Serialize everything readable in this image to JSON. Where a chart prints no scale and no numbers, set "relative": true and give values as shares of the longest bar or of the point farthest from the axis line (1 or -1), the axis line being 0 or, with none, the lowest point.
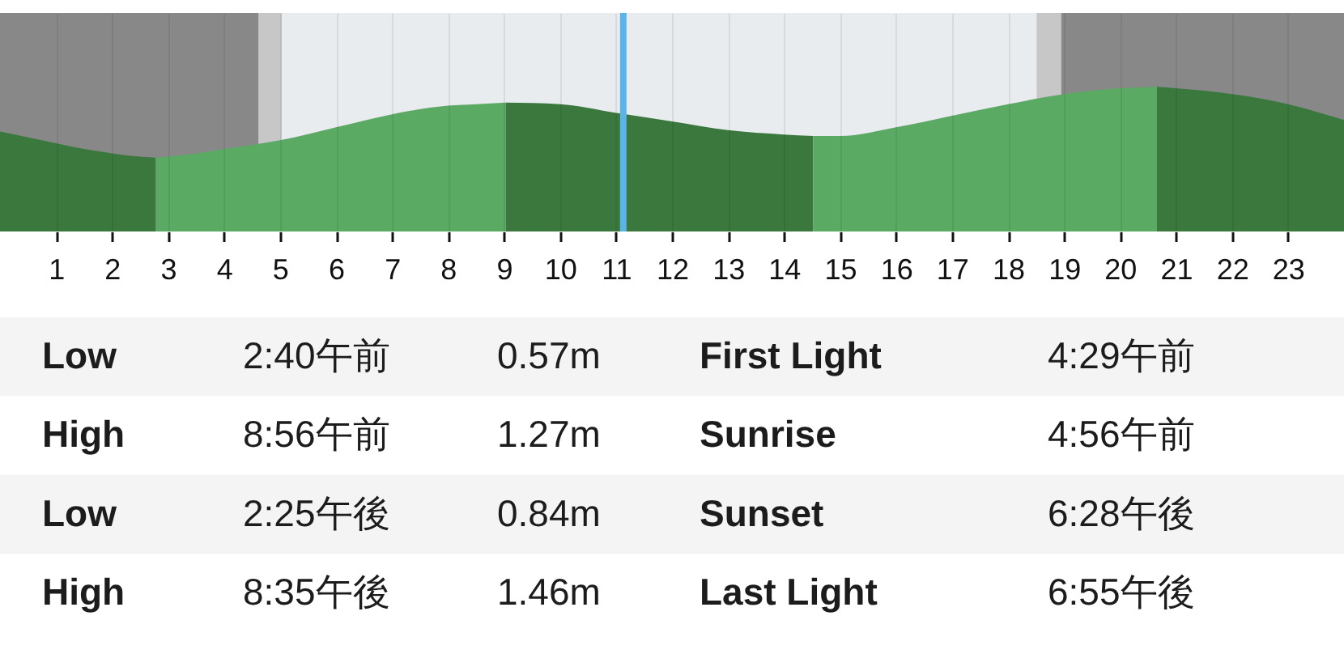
{
  "chart_data": [
    {
      "type": "area",
      "relative": true,
      "xlim": [
        0,
        24
      ],
      "xticks": [
        1,
        2,
        3,
        4,
        5,
        6,
        7,
        8,
        9,
        10,
        11,
        12,
        13,
        14,
        15,
        16,
        17,
        18,
        19,
        20,
        21,
        22,
        23
      ],
      "tick_labels": "x",
      "grid": "x",
      "bands": [
        {
          "axis": "x",
          "from": 0,
          "to": 4.62,
          "color": "#888888"
        },
        {
          "axis": "x",
          "from": 4.62,
          "to": 5.03,
          "color": "#c7c7c7"
        },
        {
          "axis": "x",
          "from": 5.03,
          "to": 18.51,
          "color": "#e9ecee"
        },
        {
          "axis": "x",
          "from": 18.51,
          "to": 18.95,
          "color": "#c7c7c7"
        },
        {
          "axis": "x",
          "from": 18.95,
          "to": 24,
          "color": "#888888"
        }
      ],
      "series": [
        {
          "color": "#3a783e",
          "x": [
            0,
            0.5,
            1,
            1.5,
            2,
            2.4,
            2.78
          ],
          "values": [
            0.69,
            0.65,
            0.61,
            0.57,
            0.54,
            0.52,
            0.51
          ]
        },
        {
          "color": "#5aaa64",
          "x": [
            2.78,
            3.5,
            4,
            5,
            6,
            7,
            8,
            8.5,
            9.03
          ],
          "values": [
            0.51,
            0.54,
            0.57,
            0.63,
            0.72,
            0.81,
            0.87,
            0.88,
            0.89
          ]
        },
        {
          "color": "#3a783e",
          "x": [
            9.03,
            10,
            11,
            12,
            13,
            14,
            14.52
          ],
          "values": [
            0.89,
            0.88,
            0.82,
            0.76,
            0.7,
            0.67,
            0.66
          ]
        },
        {
          "color": "#5aaa64",
          "x": [
            14.52,
            15,
            16,
            17,
            18,
            19,
            20,
            20.66
          ],
          "values": [
            0.66,
            0.66,
            0.72,
            0.8,
            0.88,
            0.95,
            0.99,
            1.0
          ]
        },
        {
          "color": "#3a783e",
          "x": [
            20.66,
            21,
            22,
            23,
            24
          ],
          "values": [
            1.0,
            0.99,
            0.95,
            0.88,
            0.77
          ]
        }
      ],
      "ref_lines": [
        {
          "axis": "x",
          "value": 11.13,
          "color": "#5ab4e6"
        }
      ]
    },
    {
      "type": "other",
      "annotations": [
        "Low",
        "2:40午前",
        "0.57m",
        "First Light",
        "4:29午前",
        "High",
        "8:56午前",
        "1.27m",
        "Sunrise",
        "4:56午前",
        "Low",
        "2:25午後",
        "0.84m",
        "Sunset",
        "6:28午後",
        "High",
        "8:35午後",
        "1.46m",
        "Last Light",
        "6:55午後"
      ]
    }
  ]
}
